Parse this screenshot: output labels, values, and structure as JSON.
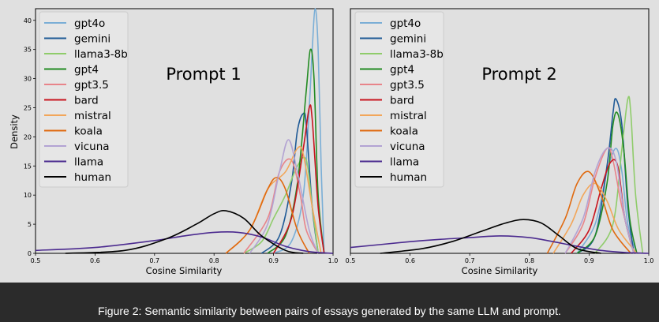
{
  "figure": {
    "caption": "Figure 2: Semantic similarity between pairs of essays generated by the same LLM and prompt.",
    "ylabel": "Density",
    "xlabel": "Cosine Similarity"
  },
  "series_styles": [
    {
      "name": "gpt4o",
      "color": "#7aaed6"
    },
    {
      "name": "gemini",
      "color": "#1f5a96"
    },
    {
      "name": "llama3-8b",
      "color": "#8fcc6a"
    },
    {
      "name": "gpt4",
      "color": "#228b22"
    },
    {
      "name": "gpt3.5",
      "color": "#e8848a"
    },
    {
      "name": "bard",
      "color": "#c8141e"
    },
    {
      "name": "mistral",
      "color": "#f2a65a"
    },
    {
      "name": "koala",
      "color": "#e06a10"
    },
    {
      "name": "vicuna",
      "color": "#b3a3d3"
    },
    {
      "name": "llama",
      "color": "#4b2a8f"
    },
    {
      "name": "human",
      "color": "#000000"
    }
  ],
  "chart_data": [
    {
      "type": "line",
      "title": "Prompt 1",
      "xlabel": "Cosine Similarity",
      "ylabel": "Density",
      "xlim": [
        0.5,
        1.0
      ],
      "ylim": [
        0,
        42
      ],
      "xticks": [
        "0.5",
        "0.6",
        "0.7",
        "0.8",
        "0.9",
        "1.0"
      ],
      "yticks": [
        "0",
        "5",
        "10",
        "15",
        "20",
        "25",
        "30",
        "35",
        "40"
      ],
      "legend": "top-left",
      "series": [
        {
          "name": "gpt4o",
          "x": [
            0.9,
            0.93,
            0.95,
            0.96,
            0.965,
            0.97,
            0.975,
            0.98,
            0.985
          ],
          "y": [
            0,
            2,
            10,
            25,
            35,
            42,
            35,
            15,
            0
          ]
        },
        {
          "name": "gemini",
          "x": [
            0.88,
            0.91,
            0.93,
            0.94,
            0.95,
            0.955,
            0.965,
            0.975
          ],
          "y": [
            0,
            3,
            12,
            21,
            24,
            22,
            8,
            0
          ]
        },
        {
          "name": "llama3-8b",
          "x": [
            0.85,
            0.88,
            0.9,
            0.92,
            0.94,
            0.955,
            0.965,
            0.975
          ],
          "y": [
            0,
            2,
            6,
            10,
            15,
            16,
            8,
            0
          ]
        },
        {
          "name": "gpt4",
          "x": [
            0.89,
            0.92,
            0.94,
            0.955,
            0.962,
            0.968,
            0.975,
            0.985
          ],
          "y": [
            0,
            3,
            12,
            28,
            35,
            30,
            10,
            0
          ]
        },
        {
          "name": "gpt3.5",
          "x": [
            0.85,
            0.89,
            0.91,
            0.93,
            0.945,
            0.955,
            0.975
          ],
          "y": [
            0,
            6,
            14,
            16,
            10,
            4,
            0
          ]
        },
        {
          "name": "bard",
          "x": [
            0.9,
            0.93,
            0.95,
            0.96,
            0.965,
            0.975,
            0.985
          ],
          "y": [
            0,
            6,
            18,
            25,
            23,
            8,
            0
          ]
        },
        {
          "name": "mistral",
          "x": [
            0.82,
            0.86,
            0.89,
            0.92,
            0.94,
            0.95,
            0.965,
            0.98
          ],
          "y": [
            0,
            4,
            11,
            14,
            18,
            17,
            8,
            0
          ]
        },
        {
          "name": "koala",
          "x": [
            0.82,
            0.86,
            0.89,
            0.905,
            0.92,
            0.94,
            0.96
          ],
          "y": [
            0,
            4,
            11,
            13,
            11,
            4,
            0
          ]
        },
        {
          "name": "vicuna",
          "x": [
            0.86,
            0.89,
            0.91,
            0.925,
            0.94,
            0.96,
            0.975
          ],
          "y": [
            0,
            5,
            14,
            19.5,
            14,
            4,
            0
          ]
        },
        {
          "name": "llama",
          "x": [
            0.5,
            0.6,
            0.7,
            0.75,
            0.8,
            0.84,
            0.88,
            0.92,
            0.96,
            1.0
          ],
          "y": [
            0.5,
            1,
            2.2,
            3,
            3.6,
            3.6,
            2.8,
            1.2,
            0.3,
            0
          ]
        },
        {
          "name": "human",
          "x": [
            0.55,
            0.65,
            0.72,
            0.77,
            0.8,
            0.82,
            0.85,
            0.88,
            0.92,
            0.95
          ],
          "y": [
            0,
            0.5,
            2.5,
            5,
            6.8,
            7.3,
            6,
            3,
            0.5,
            0
          ]
        }
      ]
    },
    {
      "type": "line",
      "title": "Prompt 2",
      "xlabel": "Cosine Similarity",
      "ylabel": "",
      "xlim": [
        0.5,
        1.0
      ],
      "ylim": [
        0,
        42
      ],
      "xticks": [
        "0.5",
        "0.6",
        "0.7",
        "0.8",
        "0.9",
        "1.0"
      ],
      "yticks": [],
      "legend": "top-left",
      "series": [
        {
          "name": "gpt4o",
          "x": [
            0.88,
            0.91,
            0.93,
            0.945,
            0.955,
            0.965,
            0.98
          ],
          "y": [
            0,
            5,
            14,
            18,
            14,
            5,
            0
          ]
        },
        {
          "name": "gemini",
          "x": [
            0.88,
            0.91,
            0.93,
            0.94,
            0.945,
            0.955,
            0.965,
            0.975
          ],
          "y": [
            0,
            3,
            15,
            24,
            26.5,
            22,
            8,
            0
          ]
        },
        {
          "name": "llama3-8b",
          "x": [
            0.91,
            0.94,
            0.955,
            0.965,
            0.97,
            0.978,
            0.99
          ],
          "y": [
            0,
            5,
            18,
            26.5,
            24,
            10,
            0
          ]
        },
        {
          "name": "gpt4",
          "x": [
            0.88,
            0.91,
            0.93,
            0.94,
            0.948,
            0.958,
            0.968,
            0.98
          ],
          "y": [
            0,
            3,
            12,
            22,
            24,
            18,
            6,
            0
          ]
        },
        {
          "name": "gpt3.5",
          "x": [
            0.86,
            0.89,
            0.91,
            0.93,
            0.94,
            0.955,
            0.975
          ],
          "y": [
            0,
            5,
            13,
            18,
            16,
            8,
            0
          ]
        },
        {
          "name": "bard",
          "x": [
            0.87,
            0.9,
            0.92,
            0.935,
            0.948,
            0.96,
            0.975
          ],
          "y": [
            0,
            4,
            11,
            15.5,
            15,
            6,
            0
          ]
        },
        {
          "name": "mistral",
          "x": [
            0.84,
            0.87,
            0.89,
            0.91,
            0.93,
            0.95,
            0.98
          ],
          "y": [
            0,
            5,
            10,
            12,
            9,
            4,
            0
          ]
        },
        {
          "name": "koala",
          "x": [
            0.83,
            0.86,
            0.88,
            0.9,
            0.92,
            0.94,
            0.97
          ],
          "y": [
            0,
            6,
            12,
            14,
            10,
            4,
            0
          ]
        },
        {
          "name": "vicuna",
          "x": [
            0.86,
            0.89,
            0.91,
            0.93,
            0.945,
            0.96,
            0.975
          ],
          "y": [
            0,
            6,
            14,
            18,
            16,
            6,
            0
          ]
        },
        {
          "name": "llama",
          "x": [
            0.5,
            0.6,
            0.65,
            0.7,
            0.75,
            0.8,
            0.84,
            0.88,
            0.92,
            0.96,
            1.0
          ],
          "y": [
            1,
            2,
            2.4,
            2.7,
            3,
            2.7,
            2,
            1.2,
            0.5,
            0.15,
            0
          ]
        },
        {
          "name": "human",
          "x": [
            0.55,
            0.62,
            0.67,
            0.72,
            0.76,
            0.79,
            0.82,
            0.85,
            0.88,
            0.92
          ],
          "y": [
            0,
            0.8,
            2,
            3.8,
            5.2,
            5.8,
            5.2,
            3,
            0.8,
            0
          ]
        }
      ]
    }
  ]
}
